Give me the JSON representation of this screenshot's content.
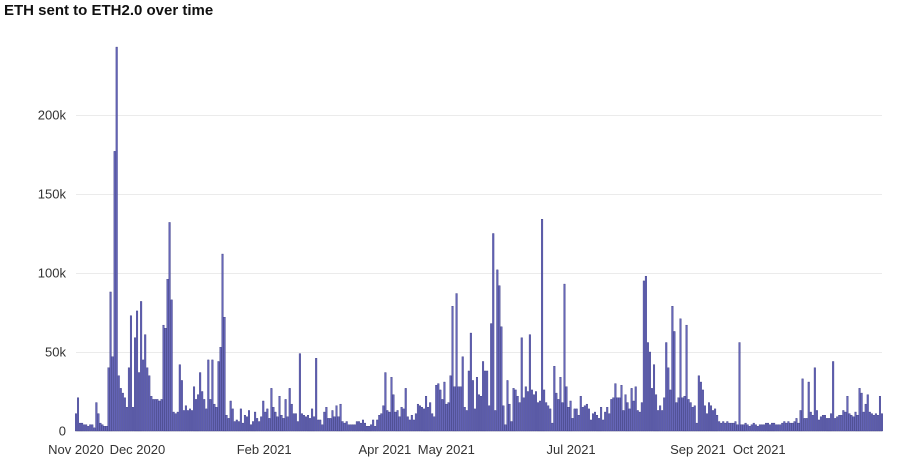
{
  "chart_data": {
    "type": "bar",
    "title": "ETH sent to ETH2.0 over time",
    "xlabel": "",
    "ylabel": "",
    "x_start": "2020-11-01",
    "x_end": "2021-11-30",
    "ylim": [
      0,
      250000
    ],
    "y_ticks": [
      0,
      50000,
      100000,
      150000,
      200000
    ],
    "y_tick_labels": [
      "0",
      "50k",
      "100k",
      "150k",
      "200k"
    ],
    "x_ticks": [
      "2020-11-01",
      "2020-12-01",
      "2021-02-01",
      "2021-04-01",
      "2021-05-01",
      "2021-07-01",
      "2021-09-01",
      "2021-10-01"
    ],
    "x_tick_labels": [
      "Nov 2020",
      "Dec 2020",
      "Feb 2021",
      "Apr 2021",
      "May 2021",
      "Jul 2021",
      "Sep 2021",
      "Oct 2021"
    ],
    "grid": "horizontal",
    "bar_color": "#6666b8",
    "bar_edge_color": "#2d2d7a",
    "values": [
      11000,
      21000,
      5000,
      5000,
      4000,
      4000,
      3000,
      4000,
      4000,
      2000,
      18000,
      11000,
      5000,
      4000,
      3000,
      3000,
      40000,
      88000,
      47000,
      177000,
      243000,
      35000,
      27000,
      24000,
      21000,
      15000,
      40000,
      73000,
      15000,
      59000,
      76000,
      37000,
      82000,
      45000,
      61000,
      40000,
      35000,
      22000,
      20000,
      20000,
      20000,
      19000,
      20000,
      67000,
      65000,
      96000,
      132000,
      83000,
      12000,
      11000,
      12000,
      42000,
      32000,
      13000,
      16000,
      13000,
      14000,
      13000,
      28000,
      20000,
      23000,
      37000,
      25000,
      20000,
      14000,
      45000,
      20000,
      45000,
      17000,
      15000,
      44000,
      53000,
      112000,
      72000,
      10000,
      8000,
      19000,
      14000,
      6000,
      7000,
      6000,
      14000,
      5000,
      10000,
      9000,
      13000,
      4000,
      6000,
      12000,
      8000,
      6000,
      9000,
      19000,
      12000,
      14000,
      8000,
      27000,
      15000,
      12000,
      9000,
      22000,
      10000,
      8000,
      20000,
      9000,
      27000,
      17000,
      11000,
      11000,
      6000,
      49000,
      11000,
      10000,
      9000,
      10000,
      8000,
      14000,
      9000,
      46000,
      7000,
      7000,
      4000,
      12000,
      15000,
      8000,
      8000,
      13000,
      9000,
      16000,
      9000,
      17000,
      6000,
      5000,
      6000,
      4000,
      4000,
      4000,
      4000,
      6000,
      6000,
      5000,
      7000,
      5000,
      3000,
      3000,
      4000,
      7000,
      3000,
      7000,
      10000,
      11000,
      16000,
      37000,
      13000,
      12000,
      34000,
      23000,
      12000,
      13000,
      9000,
      15000,
      14000,
      27000,
      9000,
      7000,
      10000,
      7000,
      11000,
      17000,
      16000,
      15000,
      14000,
      22000,
      15000,
      18000,
      11000,
      9000,
      29000,
      30000,
      26000,
      20000,
      31000,
      17000,
      18000,
      35000,
      79000,
      28000,
      87000,
      28000,
      28000,
      47000,
      15000,
      13000,
      38000,
      62000,
      32000,
      14000,
      34000,
      23000,
      22000,
      44000,
      38000,
      38000,
      16000,
      68000,
      125000,
      13000,
      102000,
      92000,
      66000,
      16000,
      4000,
      32000,
      17000,
      6000,
      27000,
      26000,
      22000,
      18000,
      59000,
      21000,
      28000,
      25000,
      61000,
      26000,
      23000,
      25000,
      18000,
      19000,
      134000,
      26000,
      18000,
      16000,
      14000,
      5000,
      41000,
      24000,
      20000,
      34000,
      18000,
      93000,
      28000,
      15000,
      19000,
      8000,
      14000,
      14000,
      10000,
      22000,
      15000,
      16000,
      17000,
      14000,
      7000,
      11000,
      12000,
      10000,
      8000,
      15000,
      7000,
      12000,
      15000,
      11000,
      20000,
      21000,
      30000,
      21000,
      21000,
      29000,
      13000,
      23000,
      18000,
      14000,
      27000,
      19000,
      28000,
      13000,
      12000,
      18000,
      95000,
      98000,
      56000,
      50000,
      27000,
      42000,
      23000,
      13000,
      16000,
      13000,
      21000,
      56000,
      40000,
      26000,
      79000,
      63000,
      18000,
      21000,
      71000,
      21000,
      22000,
      67000,
      20000,
      18000,
      15000,
      16000,
      5000,
      35000,
      31000,
      26000,
      16000,
      11000,
      18000,
      16000,
      13000,
      14000,
      10000,
      6000,
      5000,
      6000,
      5000,
      6000,
      5000,
      5000,
      5000,
      6000,
      4000,
      56000,
      4000,
      4000,
      5000,
      4000,
      3000,
      4000,
      5000,
      4000,
      3000,
      4000,
      4000,
      4000,
      5000,
      5000,
      4000,
      5000,
      5000,
      4000,
      4000,
      4000,
      5000,
      6000,
      5000,
      6000,
      5000,
      5000,
      6000,
      8000,
      5000,
      13000,
      33000,
      8000,
      8000,
      31000,
      12000,
      10000,
      40000,
      13000,
      7000,
      9000,
      10000,
      10000,
      8000,
      8000,
      11000,
      44000,
      8000,
      9000,
      10000,
      10000,
      13000,
      12000,
      22000,
      11000,
      10000,
      9000,
      12000,
      10000,
      27000,
      24000,
      12000,
      17000,
      23000,
      12000,
      11000,
      10000,
      11000,
      10000,
      22000,
      11000
    ]
  }
}
